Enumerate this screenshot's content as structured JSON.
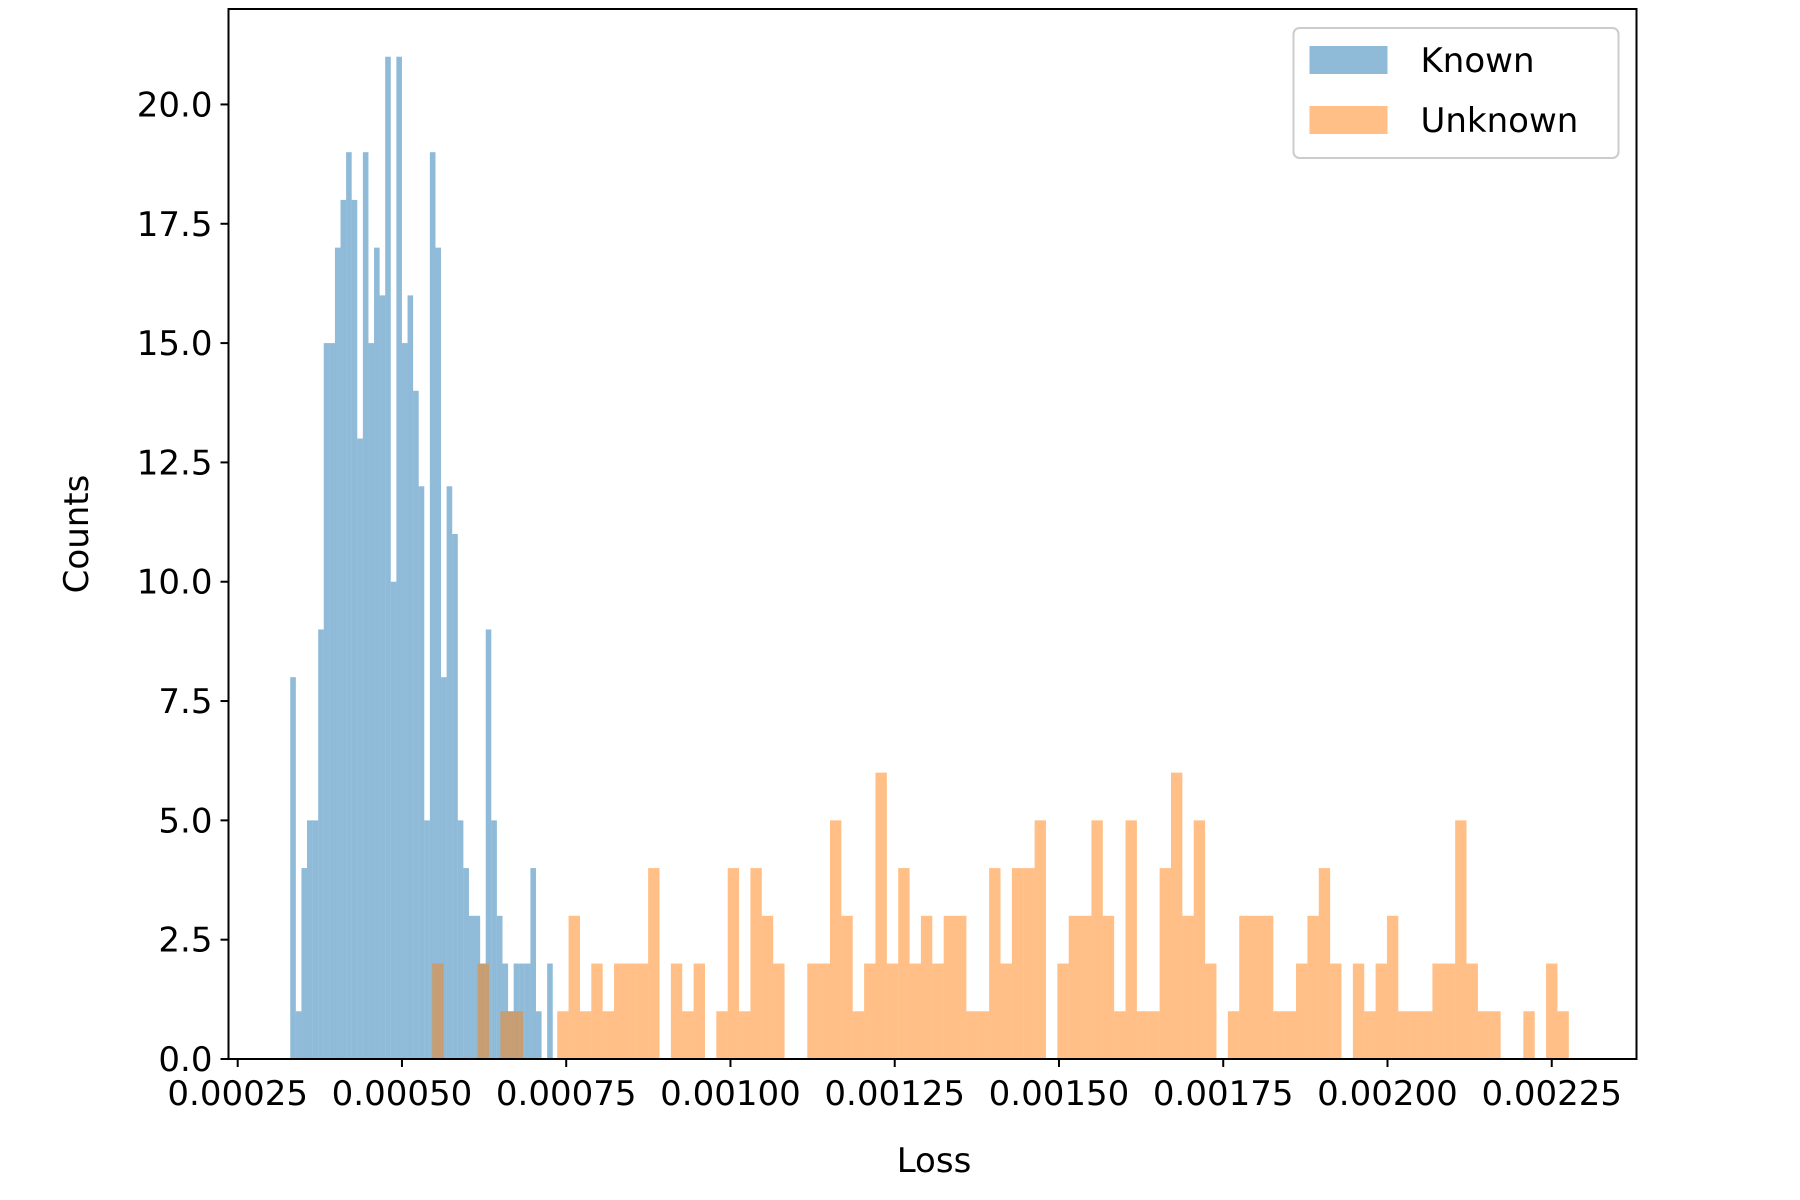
{
  "chart_data": {
    "type": "histogram",
    "x_label": "Loss",
    "y_label": "Counts",
    "xlim": [
      0.000236,
      0.002379
    ],
    "ylim": [
      0,
      22.0
    ],
    "xticks": [
      0.00025,
      {
        "value": 0.0005,
        "label": "0.00050"
      },
      0.00075,
      {
        "value": 0.001,
        "label": "0.00100"
      },
      0.00125,
      {
        "value": 0.0015,
        "label": "0.00150"
      },
      0.00175,
      {
        "value": 0.002,
        "label": "0.00200"
      },
      0.00225
    ],
    "yticks": [
      {
        "value": 0,
        "label": "0.0"
      },
      2.5,
      {
        "value": 5,
        "label": "5.0"
      },
      7.5,
      {
        "value": 10,
        "label": "10.0"
      },
      12.5,
      {
        "value": 15,
        "label": "15.0"
      },
      17.5,
      {
        "value": 20,
        "label": "20.0"
      }
    ],
    "alpha": 0.5,
    "legend": "upper right",
    "series": [
      {
        "name": "Known",
        "color": "#1f77b4",
        "bins": [
          0.00033,
          0.0003385,
          0.000347,
          0.0003555,
          0.000364,
          0.0003725,
          0.000381,
          0.0003895,
          0.000398,
          0.0004065,
          0.000415,
          0.0004235,
          0.000432,
          0.0004405,
          0.000449,
          0.0004575,
          0.000466,
          0.0004745,
          0.000483,
          0.0004915,
          0.0005,
          0.0005085,
          0.000517,
          0.0005255,
          0.000534,
          0.0005425,
          0.000551,
          0.0005595,
          0.000568,
          0.0005765,
          0.000585,
          0.0005935,
          0.000602,
          0.0006105,
          0.000619,
          0.0006275,
          0.000636,
          0.0006445,
          0.000653,
          0.0006615,
          0.00067,
          0.0006785,
          0.000687,
          0.0006955,
          0.000704,
          0.0007125,
          0.000721,
          0.0007295,
          0.000738
        ],
        "values": [
          8,
          1,
          4,
          5,
          5,
          9,
          15,
          15,
          17,
          18,
          19,
          18,
          13,
          19,
          15,
          17,
          16,
          21,
          10,
          21,
          15,
          16,
          14,
          12,
          5,
          19,
          17,
          8,
          12,
          11,
          5,
          4,
          3,
          3,
          2,
          9,
          5,
          3,
          2,
          1,
          2,
          2,
          2,
          4,
          1,
          0,
          2,
          0
        ]
      },
      {
        "name": "Unknown",
        "color": "#ff7f0e",
        "bins": [
          0.000546,
          0.0005633,
          0.0005806,
          0.0005979,
          0.0006152,
          0.0006325,
          0.0006498,
          0.0006671,
          0.0006844,
          0.0007017,
          0.000719,
          0.0007363,
          0.0007536,
          0.0007709,
          0.0007882,
          0.0008055,
          0.0008228,
          0.0008401,
          0.0008574,
          0.0008747,
          0.000892,
          0.0009093,
          0.0009266,
          0.0009439,
          0.0009612,
          0.0009785,
          0.0009958,
          0.0010131,
          0.0010304,
          0.0010477,
          0.001065,
          0.0010823,
          0.0010996,
          0.0011169,
          0.0011342,
          0.0011515,
          0.0011688,
          0.0011861,
          0.0012034,
          0.0012207,
          0.001238,
          0.0012553,
          0.0012726,
          0.0012899,
          0.0013072,
          0.0013245,
          0.0013418,
          0.0013591,
          0.0013764,
          0.0013937,
          0.001411,
          0.0014283,
          0.0014456,
          0.0014629,
          0.0014802,
          0.0014975,
          0.0015148,
          0.0015321,
          0.0015494,
          0.0015667,
          0.001584,
          0.0016013,
          0.0016186,
          0.0016359,
          0.0016532,
          0.0016705,
          0.0016878,
          0.0017051,
          0.0017224,
          0.0017397,
          0.001757,
          0.0017743,
          0.0017916,
          0.0018089,
          0.0018262,
          0.0018435,
          0.0018608,
          0.0018781,
          0.0018954,
          0.0019127,
          0.00193,
          0.0019473,
          0.0019646,
          0.0019819,
          0.0019992,
          0.0020165,
          0.0020338,
          0.0020511,
          0.0020684,
          0.0020857,
          0.002103,
          0.0021203,
          0.0021376,
          0.0021549,
          0.0021722,
          0.0021895,
          0.0022068,
          0.0022241,
          0.0022414,
          0.0022587,
          0.002276
        ],
        "values": [
          2,
          0,
          0,
          0,
          2,
          0,
          1,
          1,
          0,
          0,
          0,
          1,
          3,
          1,
          2,
          1,
          2,
          2,
          2,
          4,
          0,
          2,
          1,
          2,
          0,
          1,
          4,
          1,
          4,
          3,
          2,
          0,
          0,
          2,
          2,
          5,
          3,
          1,
          2,
          6,
          2,
          4,
          2,
          3,
          2,
          3,
          3,
          1,
          1,
          4,
          2,
          4,
          4,
          5,
          0,
          2,
          3,
          3,
          5,
          3,
          1,
          5,
          1,
          1,
          4,
          6,
          3,
          5,
          2,
          0,
          1,
          3,
          3,
          3,
          1,
          1,
          2,
          3,
          4,
          2,
          0,
          2,
          1,
          2,
          3,
          1,
          1,
          1,
          2,
          2,
          5,
          2,
          1,
          1,
          0,
          0,
          1,
          0,
          2,
          1
        ]
      }
    ]
  }
}
